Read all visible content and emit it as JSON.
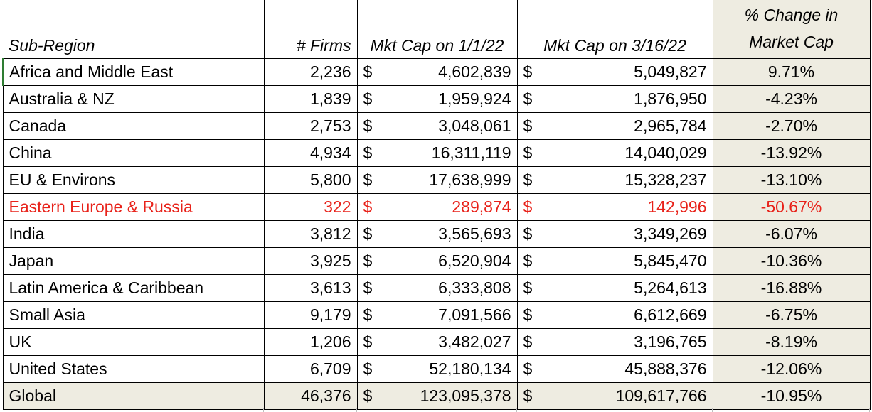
{
  "headers": {
    "sub_region": "Sub-Region",
    "firms": "# Firms",
    "mkt_cap_1": "Mkt Cap on 1/1/22",
    "mkt_cap_2": "Mkt Cap on 3/16/22",
    "pct_line1": "% Change in",
    "pct_line2": "Market Cap"
  },
  "currency_symbol": "$",
  "highlight_color": "#e8221a",
  "rows": [
    {
      "region": "Africa and Middle East",
      "firms": "2,236",
      "mc1": "4,602,839",
      "mc2": "5,049,827",
      "pct": "9.71%"
    },
    {
      "region": "Australia & NZ",
      "firms": "1,839",
      "mc1": "1,959,924",
      "mc2": "1,876,950",
      "pct": "-4.23%"
    },
    {
      "region": "Canada",
      "firms": "2,753",
      "mc1": "3,048,061",
      "mc2": "2,965,784",
      "pct": "-2.70%"
    },
    {
      "region": "China",
      "firms": "4,934",
      "mc1": "16,311,119",
      "mc2": "14,040,029",
      "pct": "-13.92%"
    },
    {
      "region": "EU & Environs",
      "firms": "5,800",
      "mc1": "17,638,999",
      "mc2": "15,328,237",
      "pct": "-13.10%"
    },
    {
      "region": "Eastern Europe & Russia",
      "firms": "322",
      "mc1": "289,874",
      "mc2": "142,996",
      "pct": "-50.67%",
      "highlight": true
    },
    {
      "region": "India",
      "firms": "3,812",
      "mc1": "3,565,693",
      "mc2": "3,349,269",
      "pct": "-6.07%"
    },
    {
      "region": "Japan",
      "firms": "3,925",
      "mc1": "6,520,904",
      "mc2": "5,845,470",
      "pct": "-10.36%"
    },
    {
      "region": "Latin America & Caribbean",
      "firms": "3,613",
      "mc1": "6,333,808",
      "mc2": "5,264,613",
      "pct": "-16.88%"
    },
    {
      "region": "Small Asia",
      "firms": "9,179",
      "mc1": "7,091,566",
      "mc2": "6,612,669",
      "pct": "-6.75%"
    },
    {
      "region": "UK",
      "firms": "1,206",
      "mc1": "3,482,027",
      "mc2": "3,196,765",
      "pct": "-8.19%"
    },
    {
      "region": "United States",
      "firms": "6,709",
      "mc1": "52,180,134",
      "mc2": "45,888,376",
      "pct": "-12.06%"
    }
  ],
  "total": {
    "region": "Global",
    "firms": "46,376",
    "mc1": "123,095,378",
    "mc2": "109,617,766",
    "pct": "-10.95%"
  }
}
